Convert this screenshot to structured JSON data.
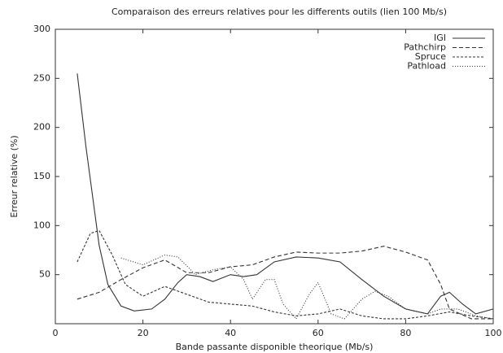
{
  "chart_data": {
    "type": "line",
    "title": "Comparaison des erreurs relatives pour les differents outils (lien 100 Mb/s)",
    "x_label": "Bande passante disponible theorique (Mb/s)",
    "y_label": "Erreur relative (%)",
    "xlim": [
      0,
      100
    ],
    "xticks": [
      0,
      20,
      40,
      60,
      80,
      100
    ],
    "ylim": [
      0,
      300
    ],
    "yticks": [
      50,
      100,
      150,
      200,
      250,
      300
    ],
    "legend": "top-right",
    "series": [
      {
        "name": "IGI",
        "color": "#333333",
        "dash": "none",
        "x": [
          5,
          7,
          10,
          12,
          15,
          18,
          22,
          25,
          28,
          30,
          33,
          36,
          40,
          43,
          46,
          50,
          55,
          60,
          65,
          70,
          75,
          80,
          85,
          88,
          90,
          93,
          96,
          100
        ],
        "values": [
          255,
          180,
          80,
          40,
          18,
          13,
          15,
          25,
          42,
          50,
          48,
          43,
          50,
          48,
          50,
          63,
          68,
          67,
          63,
          45,
          28,
          15,
          10,
          28,
          32,
          20,
          10,
          15
        ]
      },
      {
        "name": "Pathchirp",
        "color": "#333333",
        "dash": "5,3",
        "x": [
          5,
          10,
          15,
          20,
          25,
          30,
          35,
          40,
          45,
          50,
          55,
          60,
          65,
          70,
          75,
          80,
          85,
          88,
          90,
          95,
          100
        ],
        "values": [
          25,
          32,
          45,
          57,
          65,
          52,
          52,
          58,
          60,
          68,
          73,
          72,
          72,
          74,
          79,
          73,
          65,
          40,
          15,
          5,
          5
        ]
      },
      {
        "name": "Spruce",
        "color": "#333333",
        "dash": "3,2",
        "x": [
          5,
          8,
          10,
          13,
          16,
          20,
          25,
          30,
          35,
          40,
          45,
          50,
          55,
          60,
          65,
          70,
          75,
          80,
          85,
          90,
          95,
          100
        ],
        "values": [
          63,
          92,
          95,
          70,
          40,
          28,
          38,
          30,
          22,
          20,
          18,
          12,
          8,
          10,
          15,
          8,
          5,
          5,
          8,
          12,
          8,
          5
        ]
      },
      {
        "name": "Pathload",
        "color": "#333333",
        "dash": "1,2",
        "x": [
          15,
          20,
          25,
          28,
          32,
          36,
          40,
          43,
          45,
          48,
          50,
          52,
          55,
          58,
          60,
          63,
          66,
          70,
          73,
          76,
          80,
          85,
          88,
          92,
          96,
          100
        ],
        "values": [
          67,
          60,
          70,
          68,
          50,
          55,
          58,
          45,
          25,
          45,
          45,
          20,
          5,
          30,
          42,
          10,
          5,
          25,
          33,
          28,
          15,
          10,
          15,
          15,
          8,
          5
        ]
      }
    ]
  }
}
